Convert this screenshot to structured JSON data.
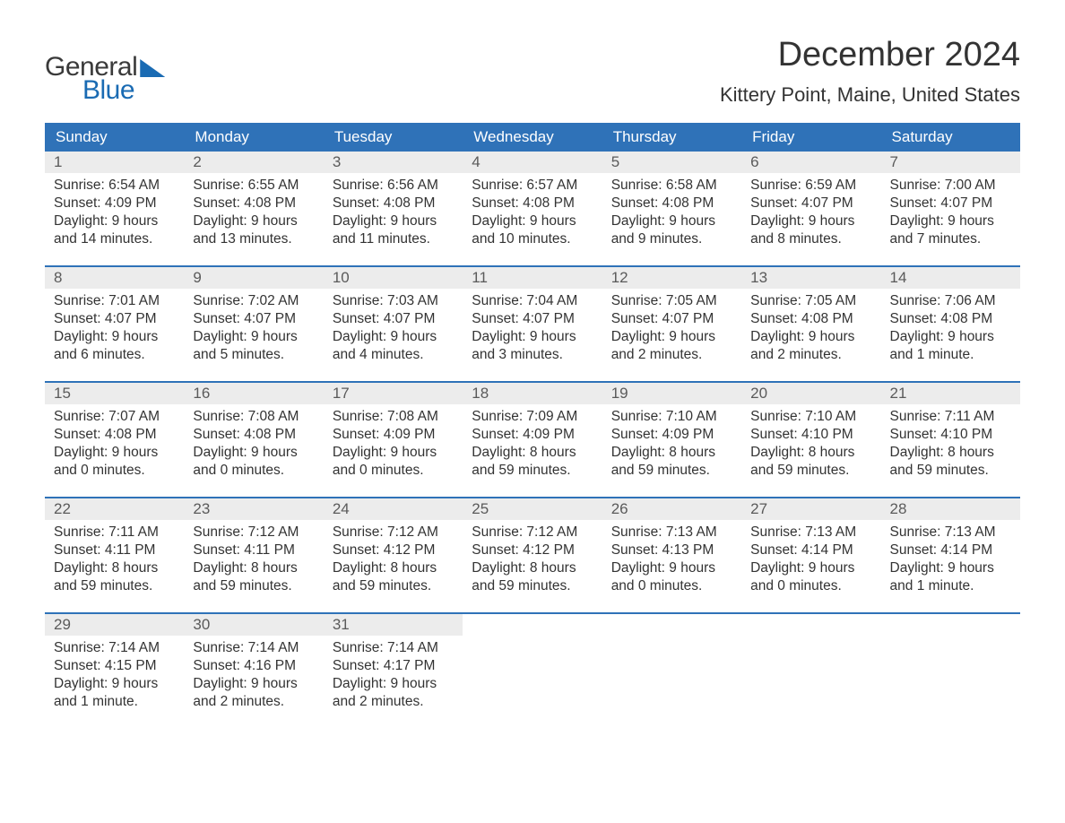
{
  "logo": {
    "text_general": "General",
    "text_blue": "Blue",
    "brand_color": "#1a6bb3"
  },
  "title": "December 2024",
  "location": "Kittery Point, Maine, United States",
  "colors": {
    "header_bg": "#2f72b8",
    "header_text": "#ffffff",
    "daynum_bg": "#ececec",
    "daynum_text": "#5a5a5a",
    "body_text": "#333333",
    "rule": "#2f72b8",
    "page_bg": "#ffffff"
  },
  "typography": {
    "title_fontsize": 38,
    "location_fontsize": 22,
    "header_fontsize": 17,
    "daynum_fontsize": 17,
    "data_fontsize": 15.5,
    "logo_fontsize": 30
  },
  "day_headers": [
    "Sunday",
    "Monday",
    "Tuesday",
    "Wednesday",
    "Thursday",
    "Friday",
    "Saturday"
  ],
  "weeks": [
    [
      {
        "n": "1",
        "sunrise": "Sunrise: 6:54 AM",
        "sunset": "Sunset: 4:09 PM",
        "dl1": "Daylight: 9 hours",
        "dl2": "and 14 minutes."
      },
      {
        "n": "2",
        "sunrise": "Sunrise: 6:55 AM",
        "sunset": "Sunset: 4:08 PM",
        "dl1": "Daylight: 9 hours",
        "dl2": "and 13 minutes."
      },
      {
        "n": "3",
        "sunrise": "Sunrise: 6:56 AM",
        "sunset": "Sunset: 4:08 PM",
        "dl1": "Daylight: 9 hours",
        "dl2": "and 11 minutes."
      },
      {
        "n": "4",
        "sunrise": "Sunrise: 6:57 AM",
        "sunset": "Sunset: 4:08 PM",
        "dl1": "Daylight: 9 hours",
        "dl2": "and 10 minutes."
      },
      {
        "n": "5",
        "sunrise": "Sunrise: 6:58 AM",
        "sunset": "Sunset: 4:08 PM",
        "dl1": "Daylight: 9 hours",
        "dl2": "and 9 minutes."
      },
      {
        "n": "6",
        "sunrise": "Sunrise: 6:59 AM",
        "sunset": "Sunset: 4:07 PM",
        "dl1": "Daylight: 9 hours",
        "dl2": "and 8 minutes."
      },
      {
        "n": "7",
        "sunrise": "Sunrise: 7:00 AM",
        "sunset": "Sunset: 4:07 PM",
        "dl1": "Daylight: 9 hours",
        "dl2": "and 7 minutes."
      }
    ],
    [
      {
        "n": "8",
        "sunrise": "Sunrise: 7:01 AM",
        "sunset": "Sunset: 4:07 PM",
        "dl1": "Daylight: 9 hours",
        "dl2": "and 6 minutes."
      },
      {
        "n": "9",
        "sunrise": "Sunrise: 7:02 AM",
        "sunset": "Sunset: 4:07 PM",
        "dl1": "Daylight: 9 hours",
        "dl2": "and 5 minutes."
      },
      {
        "n": "10",
        "sunrise": "Sunrise: 7:03 AM",
        "sunset": "Sunset: 4:07 PM",
        "dl1": "Daylight: 9 hours",
        "dl2": "and 4 minutes."
      },
      {
        "n": "11",
        "sunrise": "Sunrise: 7:04 AM",
        "sunset": "Sunset: 4:07 PM",
        "dl1": "Daylight: 9 hours",
        "dl2": "and 3 minutes."
      },
      {
        "n": "12",
        "sunrise": "Sunrise: 7:05 AM",
        "sunset": "Sunset: 4:07 PM",
        "dl1": "Daylight: 9 hours",
        "dl2": "and 2 minutes."
      },
      {
        "n": "13",
        "sunrise": "Sunrise: 7:05 AM",
        "sunset": "Sunset: 4:08 PM",
        "dl1": "Daylight: 9 hours",
        "dl2": "and 2 minutes."
      },
      {
        "n": "14",
        "sunrise": "Sunrise: 7:06 AM",
        "sunset": "Sunset: 4:08 PM",
        "dl1": "Daylight: 9 hours",
        "dl2": "and 1 minute."
      }
    ],
    [
      {
        "n": "15",
        "sunrise": "Sunrise: 7:07 AM",
        "sunset": "Sunset: 4:08 PM",
        "dl1": "Daylight: 9 hours",
        "dl2": "and 0 minutes."
      },
      {
        "n": "16",
        "sunrise": "Sunrise: 7:08 AM",
        "sunset": "Sunset: 4:08 PM",
        "dl1": "Daylight: 9 hours",
        "dl2": "and 0 minutes."
      },
      {
        "n": "17",
        "sunrise": "Sunrise: 7:08 AM",
        "sunset": "Sunset: 4:09 PM",
        "dl1": "Daylight: 9 hours",
        "dl2": "and 0 minutes."
      },
      {
        "n": "18",
        "sunrise": "Sunrise: 7:09 AM",
        "sunset": "Sunset: 4:09 PM",
        "dl1": "Daylight: 8 hours",
        "dl2": "and 59 minutes."
      },
      {
        "n": "19",
        "sunrise": "Sunrise: 7:10 AM",
        "sunset": "Sunset: 4:09 PM",
        "dl1": "Daylight: 8 hours",
        "dl2": "and 59 minutes."
      },
      {
        "n": "20",
        "sunrise": "Sunrise: 7:10 AM",
        "sunset": "Sunset: 4:10 PM",
        "dl1": "Daylight: 8 hours",
        "dl2": "and 59 minutes."
      },
      {
        "n": "21",
        "sunrise": "Sunrise: 7:11 AM",
        "sunset": "Sunset: 4:10 PM",
        "dl1": "Daylight: 8 hours",
        "dl2": "and 59 minutes."
      }
    ],
    [
      {
        "n": "22",
        "sunrise": "Sunrise: 7:11 AM",
        "sunset": "Sunset: 4:11 PM",
        "dl1": "Daylight: 8 hours",
        "dl2": "and 59 minutes."
      },
      {
        "n": "23",
        "sunrise": "Sunrise: 7:12 AM",
        "sunset": "Sunset: 4:11 PM",
        "dl1": "Daylight: 8 hours",
        "dl2": "and 59 minutes."
      },
      {
        "n": "24",
        "sunrise": "Sunrise: 7:12 AM",
        "sunset": "Sunset: 4:12 PM",
        "dl1": "Daylight: 8 hours",
        "dl2": "and 59 minutes."
      },
      {
        "n": "25",
        "sunrise": "Sunrise: 7:12 AM",
        "sunset": "Sunset: 4:12 PM",
        "dl1": "Daylight: 8 hours",
        "dl2": "and 59 minutes."
      },
      {
        "n": "26",
        "sunrise": "Sunrise: 7:13 AM",
        "sunset": "Sunset: 4:13 PM",
        "dl1": "Daylight: 9 hours",
        "dl2": "and 0 minutes."
      },
      {
        "n": "27",
        "sunrise": "Sunrise: 7:13 AM",
        "sunset": "Sunset: 4:14 PM",
        "dl1": "Daylight: 9 hours",
        "dl2": "and 0 minutes."
      },
      {
        "n": "28",
        "sunrise": "Sunrise: 7:13 AM",
        "sunset": "Sunset: 4:14 PM",
        "dl1": "Daylight: 9 hours",
        "dl2": "and 1 minute."
      }
    ],
    [
      {
        "n": "29",
        "sunrise": "Sunrise: 7:14 AM",
        "sunset": "Sunset: 4:15 PM",
        "dl1": "Daylight: 9 hours",
        "dl2": "and 1 minute."
      },
      {
        "n": "30",
        "sunrise": "Sunrise: 7:14 AM",
        "sunset": "Sunset: 4:16 PM",
        "dl1": "Daylight: 9 hours",
        "dl2": "and 2 minutes."
      },
      {
        "n": "31",
        "sunrise": "Sunrise: 7:14 AM",
        "sunset": "Sunset: 4:17 PM",
        "dl1": "Daylight: 9 hours",
        "dl2": "and 2 minutes."
      },
      null,
      null,
      null,
      null
    ]
  ]
}
